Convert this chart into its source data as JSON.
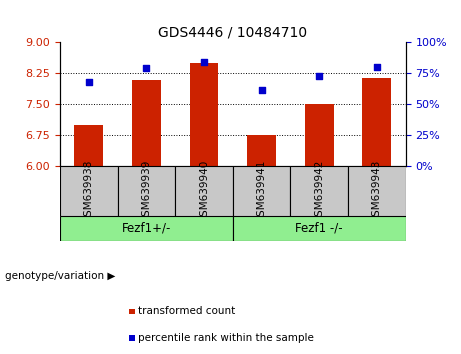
{
  "title": "GDS4446 / 10484710",
  "samples": [
    "GSM639938",
    "GSM639939",
    "GSM639940",
    "GSM639941",
    "GSM639942",
    "GSM639943"
  ],
  "bar_values": [
    7.0,
    8.1,
    8.5,
    6.75,
    7.5,
    8.15
  ],
  "dot_values": [
    68,
    79,
    84,
    62,
    73,
    80
  ],
  "bar_color": "#cc2200",
  "dot_color": "#0000cc",
  "ylim_left": [
    6,
    9
  ],
  "ylim_right": [
    0,
    100
  ],
  "yticks_left": [
    6,
    6.75,
    7.5,
    8.25,
    9
  ],
  "yticks_right": [
    0,
    25,
    50,
    75,
    100
  ],
  "hlines": [
    6.75,
    7.5,
    8.25
  ],
  "groups": [
    {
      "label": "Fezf1+/-",
      "indices": [
        0,
        1,
        2
      ],
      "color": "#90ee90"
    },
    {
      "label": "Fezf1 -/-",
      "indices": [
        3,
        4,
        5
      ],
      "color": "#90ee90"
    }
  ],
  "group_row_label": "genotype/variation",
  "legend_items": [
    {
      "label": "transformed count",
      "color": "#cc2200"
    },
    {
      "label": "percentile rank within the sample",
      "color": "#0000cc"
    }
  ],
  "bar_width": 0.5,
  "background_color": "#ffffff",
  "sample_box_color": "#c8c8c8",
  "tick_label_color_left": "#cc2200",
  "tick_label_color_right": "#0000cc",
  "title_fontsize": 10
}
